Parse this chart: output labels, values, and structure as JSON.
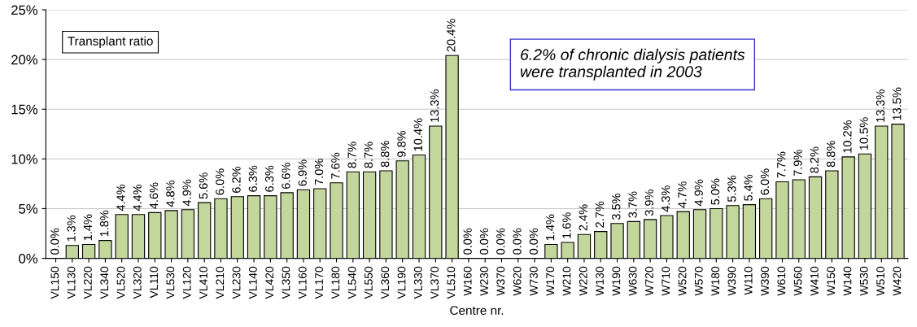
{
  "chart_data": {
    "type": "bar",
    "xlabel": "Centre nr.",
    "categories": [
      "VL150",
      "VL130",
      "VL220",
      "VL340",
      "VL520",
      "VL320",
      "VL110",
      "VL530",
      "VL120",
      "VL410",
      "VL210",
      "VL230",
      "VL140",
      "VL420",
      "VL350",
      "VL160",
      "VL170",
      "VL180",
      "VL540",
      "VL550",
      "VL360",
      "VL190",
      "VL330",
      "VL370",
      "VL510",
      "W160",
      "W230",
      "W370",
      "W620",
      "W730",
      "W170",
      "W210",
      "W220",
      "W130",
      "W190",
      "W630",
      "W720",
      "W710",
      "W520",
      "W570",
      "W180",
      "W390",
      "W110",
      "W390",
      "W610",
      "W560",
      "W410",
      "W150",
      "W140",
      "W530",
      "W510",
      "W420"
    ],
    "values": [
      0.0,
      1.3,
      1.4,
      1.8,
      4.4,
      4.4,
      4.6,
      4.8,
      4.9,
      5.6,
      6.0,
      6.2,
      6.3,
      6.3,
      6.6,
      6.9,
      7.0,
      7.6,
      8.7,
      8.7,
      8.8,
      9.8,
      10.4,
      13.3,
      20.4,
      0.0,
      0.0,
      0.0,
      0.0,
      0.0,
      1.4,
      1.6,
      2.4,
      2.7,
      3.5,
      3.7,
      3.9,
      4.3,
      4.7,
      4.9,
      5.0,
      5.3,
      5.4,
      6.0,
      7.7,
      7.9,
      8.2,
      8.8,
      10.2,
      10.5,
      13.3,
      13.5
    ],
    "value_labels": [
      "0.0%",
      "1.3%",
      "1.4%",
      "1.8%",
      "4.4%",
      "4.4%",
      "4.6%",
      "4.8%",
      "4.9%",
      "5.6%",
      "6.0%",
      "6.2%",
      "6.3%",
      "6.3%",
      "6.6%",
      "6.9%",
      "7.0%",
      "7.6%",
      "8.7%",
      "8.7%",
      "8.8%",
      "9.8%",
      "10.4%",
      "13.3%",
      "20.4%",
      "0.0%",
      "0.0%",
      "0.0%",
      "0.0%",
      "0.0%",
      "1.4%",
      "1.6%",
      "2.4%",
      "2.7%",
      "3.5%",
      "3.7%",
      "3.9%",
      "4.3%",
      "4.7%",
      "4.9%",
      "5.0%",
      "5.3%",
      "5.4%",
      "6.0%",
      "7.7%",
      "7.9%",
      "8.2%",
      "8.8%",
      "10.2%",
      "10.5%",
      "13.3%",
      "13.5%"
    ],
    "color": "#c3d69b",
    "ylim": [
      0,
      25
    ],
    "yticks": [
      {
        "value": 0,
        "label": "0%"
      },
      {
        "value": 5,
        "label": "5%"
      },
      {
        "value": 10,
        "label": "10%"
      },
      {
        "value": 15,
        "label": "15%"
      },
      {
        "value": 20,
        "label": "20%"
      },
      {
        "value": 25,
        "label": "25%"
      }
    ],
    "grid": "y",
    "annotations": [
      "Transplant ratio",
      "6.2% of chronic dialysis patients\nwere transplanted in 2003"
    ]
  }
}
